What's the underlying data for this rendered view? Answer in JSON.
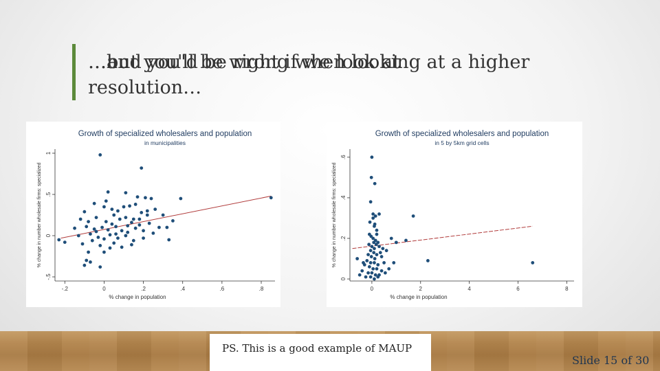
{
  "slide": {
    "title_layer_a": "…and you'd be right if we look at",
    "title_layer_b": "…but you'll be wrong when looking at a higher",
    "title_line2": "resolution…",
    "caption": "PS. This is a good example of MAUP",
    "slide_number": "Slide 15 of 30",
    "accent_color": "#5c8a3a"
  },
  "chart_data": [
    {
      "type": "scatter",
      "title": "Growth of specialized wholesalers and population",
      "subtitle": "in municipalities",
      "xlabel": "% change in population",
      "ylabel": "% change in number wholesale firms: specialized",
      "xlim": [
        -0.25,
        0.87
      ],
      "ylim": [
        -0.55,
        1.05
      ],
      "xticks": [
        -0.2,
        0,
        0.2,
        0.4,
        0.6,
        0.8
      ],
      "xtick_labels": [
        "-.2",
        "0",
        ".2",
        ".4",
        ".6",
        ".8"
      ],
      "yticks": [
        -0.5,
        0,
        0.5,
        1
      ],
      "ytick_labels": [
        "-.5",
        "0",
        ".5",
        "1"
      ],
      "fit_line": {
        "x": [
          -0.22,
          0.85
        ],
        "y": [
          -0.03,
          0.48
        ],
        "color": "#b03a3a"
      },
      "points": [
        [
          -0.02,
          0.98
        ],
        [
          0.19,
          0.82
        ],
        [
          0.02,
          0.53
        ],
        [
          0.11,
          0.52
        ],
        [
          0.17,
          0.47
        ],
        [
          0.21,
          0.46
        ],
        [
          0.24,
          0.45
        ],
        [
          0.39,
          0.45
        ],
        [
          0.85,
          0.46
        ],
        [
          -0.1,
          0.29
        ],
        [
          -0.05,
          0.39
        ],
        [
          0.0,
          0.35
        ],
        [
          0.04,
          0.32
        ],
        [
          0.07,
          0.3
        ],
        [
          0.1,
          0.35
        ],
        [
          0.13,
          0.36
        ],
        [
          0.16,
          0.38
        ],
        [
          0.19,
          0.28
        ],
        [
          0.22,
          0.3
        ],
        [
          0.26,
          0.32
        ],
        [
          0.3,
          0.25
        ],
        [
          -0.12,
          0.2
        ],
        [
          -0.08,
          0.17
        ],
        [
          -0.04,
          0.22
        ],
        [
          0.01,
          0.17
        ],
        [
          0.04,
          0.14
        ],
        [
          0.08,
          0.2
        ],
        [
          0.11,
          0.22
        ],
        [
          0.14,
          0.16
        ],
        [
          0.18,
          0.13
        ],
        [
          0.23,
          0.15
        ],
        [
          0.28,
          0.1
        ],
        [
          0.32,
          0.1
        ],
        [
          -0.15,
          0.09
        ],
        [
          -0.09,
          0.11
        ],
        [
          -0.05,
          0.08
        ],
        [
          -0.01,
          0.1
        ],
        [
          0.02,
          0.07
        ],
        [
          0.06,
          0.11
        ],
        [
          0.09,
          0.06
        ],
        [
          0.12,
          0.04
        ],
        [
          0.16,
          0.09
        ],
        [
          0.2,
          0.06
        ],
        [
          0.25,
          0.03
        ],
        [
          -0.13,
          0.0
        ],
        [
          -0.07,
          0.02
        ],
        [
          -0.03,
          -0.02
        ],
        [
          0.0,
          -0.04
        ],
        [
          0.03,
          0.01
        ],
        [
          0.07,
          -0.03
        ],
        [
          0.11,
          0.0
        ],
        [
          0.15,
          -0.06
        ],
        [
          0.2,
          -0.03
        ],
        [
          0.33,
          -0.05
        ],
        [
          -0.2,
          -0.08
        ],
        [
          -0.11,
          -0.1
        ],
        [
          -0.06,
          -0.06
        ],
        [
          -0.02,
          -0.12
        ],
        [
          0.05,
          -0.09
        ],
        [
          0.09,
          -0.14
        ],
        [
          0.14,
          -0.11
        ],
        [
          -0.23,
          -0.05
        ],
        [
          -0.08,
          -0.2
        ],
        [
          0.0,
          -0.2
        ],
        [
          0.03,
          -0.15
        ],
        [
          -0.09,
          -0.3
        ],
        [
          -0.07,
          -0.32
        ],
        [
          -0.1,
          -0.36
        ],
        [
          -0.02,
          -0.38
        ],
        [
          0.12,
          0.12
        ],
        [
          0.15,
          0.2
        ],
        [
          0.01,
          0.42
        ],
        [
          0.05,
          0.25
        ],
        [
          0.18,
          0.2
        ],
        [
          0.22,
          0.25
        ],
        [
          0.35,
          0.18
        ],
        [
          -0.04,
          0.05
        ],
        [
          0.06,
          0.02
        ]
      ]
    },
    {
      "type": "scatter",
      "title": "Growth of specialized wholesalers and population",
      "subtitle": "in 5 by 5km grid cells",
      "xlabel": "% change in population",
      "ylabel": "% change in number wholesale firms: specialized",
      "xlim": [
        -0.9,
        8.3
      ],
      "ylim": [
        -0.01,
        0.64
      ],
      "xticks": [
        0,
        2,
        4,
        6,
        8
      ],
      "xtick_labels": [
        "0",
        "2",
        "4",
        "6",
        "8"
      ],
      "yticks": [
        0,
        0.2,
        0.4,
        0.6
      ],
      "ytick_labels": [
        "0",
        ".2",
        ".4",
        ".6"
      ],
      "fit_line": {
        "x": [
          -0.8,
          6.6
        ],
        "y": [
          0.15,
          0.26
        ],
        "color": "#b03a3a"
      },
      "points": [
        [
          0.0,
          0.6
        ],
        [
          -0.02,
          0.5
        ],
        [
          0.12,
          0.47
        ],
        [
          -0.05,
          0.38
        ],
        [
          0.05,
          0.32
        ],
        [
          0.15,
          0.31
        ],
        [
          0.3,
          0.32
        ],
        [
          0.05,
          0.3
        ],
        [
          -0.08,
          0.28
        ],
        [
          0.1,
          0.26
        ],
        [
          0.2,
          0.24
        ],
        [
          -0.1,
          0.22
        ],
        [
          0.05,
          0.2
        ],
        [
          0.15,
          0.19
        ],
        [
          0.25,
          0.18
        ],
        [
          -0.12,
          0.17
        ],
        [
          0.0,
          0.16
        ],
        [
          0.1,
          0.15
        ],
        [
          0.3,
          0.16
        ],
        [
          0.45,
          0.15
        ],
        [
          -0.05,
          0.14
        ],
        [
          0.08,
          0.13
        ],
        [
          0.2,
          0.12
        ],
        [
          0.35,
          0.13
        ],
        [
          -0.15,
          0.12
        ],
        [
          -0.02,
          0.11
        ],
        [
          0.12,
          0.1
        ],
        [
          0.4,
          0.11
        ],
        [
          -0.2,
          0.09
        ],
        [
          -0.05,
          0.08
        ],
        [
          0.1,
          0.08
        ],
        [
          0.25,
          0.07
        ],
        [
          0.5,
          0.08
        ],
        [
          -0.3,
          0.07
        ],
        [
          -0.1,
          0.06
        ],
        [
          0.05,
          0.05
        ],
        [
          0.2,
          0.05
        ],
        [
          0.4,
          0.04
        ],
        [
          -0.4,
          0.04
        ],
        [
          -0.15,
          0.03
        ],
        [
          0.0,
          0.03
        ],
        [
          0.15,
          0.02
        ],
        [
          0.3,
          0.02
        ],
        [
          -0.25,
          0.01
        ],
        [
          -0.05,
          0.01
        ],
        [
          0.1,
          0.0
        ],
        [
          0.25,
          0.01
        ],
        [
          -0.5,
          0.02
        ],
        [
          -0.35,
          0.08
        ],
        [
          -0.6,
          0.1
        ],
        [
          0.6,
          0.14
        ],
        [
          0.8,
          0.2
        ],
        [
          1.0,
          0.18
        ],
        [
          1.4,
          0.19
        ],
        [
          1.7,
          0.31
        ],
        [
          2.3,
          0.09
        ],
        [
          6.6,
          0.08
        ],
        [
          0.9,
          0.08
        ],
        [
          0.7,
          0.05
        ],
        [
          0.55,
          0.03
        ],
        [
          0.2,
          0.22
        ],
        [
          0.12,
          0.27
        ],
        [
          -0.03,
          0.21
        ],
        [
          0.18,
          0.17
        ],
        [
          0.08,
          0.18
        ]
      ]
    }
  ]
}
